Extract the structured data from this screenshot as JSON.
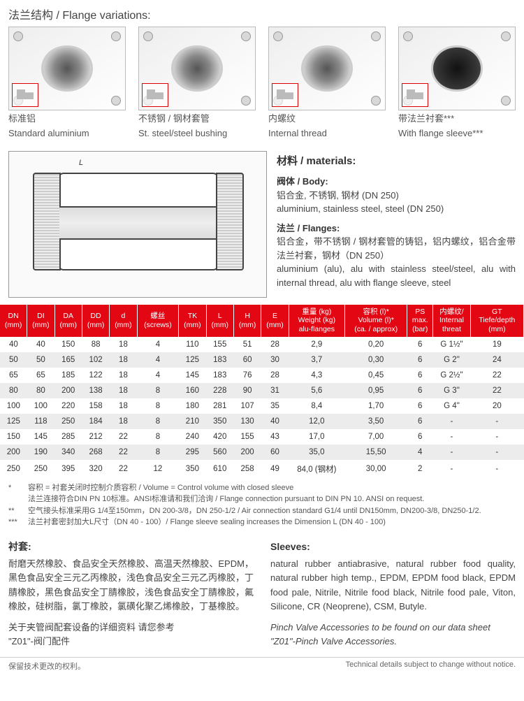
{
  "title": "法兰结构 / Flange variations:",
  "flanges": [
    {
      "cn": "标准铝",
      "en": "Standard aluminium",
      "dark": false
    },
    {
      "cn": "不锈钢 / 钢材套管",
      "en": "St. steel/steel bushing",
      "dark": false
    },
    {
      "cn": "内螺纹",
      "en": "Internal thread",
      "dark": false
    },
    {
      "cn": "带法兰衬套***",
      "en": "With flange sleeve***",
      "dark": true
    }
  ],
  "materials": {
    "title": "材料 / materials:",
    "body_h": "阀体 / Body:",
    "body_cn": "铝合金, 不锈钢, 钢材 (DN 250)",
    "body_en": "aluminium, stainless steel, steel (DN 250)",
    "flange_h": "法兰 / Flanges:",
    "flange_cn": "铝合金，带不锈钢 / 钢材套管的铸铝，铝内螺纹，铝合金带法兰衬套，钢材（DN 250）",
    "flange_en": "aluminium (alu), alu with stainless steel/steel, alu with internal thread, alu with flange sleeve, steel"
  },
  "table": {
    "headers": [
      "DN\n(mm)",
      "DI\n(mm)",
      "DA\n(mm)",
      "DD\n(mm)",
      "d\n(mm)",
      "螺丝\n(screws)",
      "TK\n(mm)",
      "L\n(mm)",
      "H\n(mm)",
      "E\n(mm)",
      "重量 (kg)\nWeight (kg)\nalu-flanges",
      "容积 (l)*\nVolume (l)*\n(ca. / approx)",
      "PS\nmax.\n(bar)",
      "内螺纹/\nInternal\nthreat",
      "GT\nTiefe/depth\n(mm)"
    ],
    "rows": [
      [
        "40",
        "40",
        "150",
        "88",
        "18",
        "4",
        "110",
        "155",
        "51",
        "28",
        "2,9",
        "0,20",
        "6",
        "G 1½\"",
        "19"
      ],
      [
        "50",
        "50",
        "165",
        "102",
        "18",
        "4",
        "125",
        "183",
        "60",
        "30",
        "3,7",
        "0,30",
        "6",
        "G 2\"",
        "24"
      ],
      [
        "65",
        "65",
        "185",
        "122",
        "18",
        "4",
        "145",
        "183",
        "76",
        "28",
        "4,3",
        "0,45",
        "6",
        "G 2½\"",
        "22"
      ],
      [
        "80",
        "80",
        "200",
        "138",
        "18",
        "8",
        "160",
        "228",
        "90",
        "31",
        "5,6",
        "0,95",
        "6",
        "G 3\"",
        "22"
      ],
      [
        "100",
        "100",
        "220",
        "158",
        "18",
        "8",
        "180",
        "281",
        "107",
        "35",
        "8,4",
        "1,70",
        "6",
        "G 4\"",
        "20"
      ],
      [
        "125",
        "118",
        "250",
        "184",
        "18",
        "8",
        "210",
        "350",
        "130",
        "40",
        "12,0",
        "3,50",
        "6",
        "-",
        "-"
      ],
      [
        "150",
        "145",
        "285",
        "212",
        "22",
        "8",
        "240",
        "420",
        "155",
        "43",
        "17,0",
        "7,00",
        "6",
        "-",
        "-"
      ],
      [
        "200",
        "190",
        "340",
        "268",
        "22",
        "8",
        "295",
        "560",
        "200",
        "60",
        "35,0",
        "15,50",
        "4",
        "-",
        "-"
      ],
      [
        "250",
        "250",
        "395",
        "320",
        "22",
        "12",
        "350",
        "610",
        "258",
        "49",
        "84,0 (钢材)",
        "30,00",
        "2",
        "-",
        "-"
      ]
    ]
  },
  "notes": [
    {
      "s": "*",
      "t": "容积 = 衬套关闭时控制介质容积 / Volume = Control volume with closed sleeve"
    },
    {
      "s": "",
      "t": "法兰连接符合DIN PN 10标准。ANSI标准请和我们洽询 / Flange connection pursuant to DIN PN 10. ANSI on request."
    },
    {
      "s": "**",
      "t": "空气接头标准采用G 1/4至150mm，DN 200-3/8，DN 250-1/2 / Air connection standard G1/4 until DN150mm, DN200-3/8, DN250-1/2."
    },
    {
      "s": "***",
      "t": "法兰衬套密封加大L尺寸（DN 40 - 100）/ Flange sleeve sealing increases the Dimension L (DN 40 - 100)"
    }
  ],
  "sleeves": {
    "h_cn": "衬套:",
    "cn": "耐磨天然橡胶、食品安全天然橡胶、高温天然橡胶、EPDM，黑色食品安全三元乙丙橡胶，浅色食品安全三元乙丙橡胶，丁腈橡胶，黑色食品安全丁腈橡胶，浅色食品安全丁腈橡胶，氟橡胶，硅树脂，氯丁橡胶，氯磺化聚乙烯橡胶，丁基橡胶。",
    "cn2": "关于夹管阀配套设备的详细资料 请您参考",
    "cn3": "\"Z01\"-阀门配件",
    "h_en": "Sleeves:",
    "en": "natural rubber antiabrasive, natural rubber food quality, natural rubber high temp., EPDM, EPDM food black, EPDM food pale, Nitrile, Nitrile food black, Nitrile food pale, Viton, Silicone, CR (Neoprene), CSM, Butyle.",
    "en2": "Pinch Valve Accessories to be found on our data sheet \"Z01\"-Pinch Valve Accessories."
  },
  "foot": {
    "l": "保留技术更改的权利。",
    "r": "Technical details subject to change without notice."
  }
}
